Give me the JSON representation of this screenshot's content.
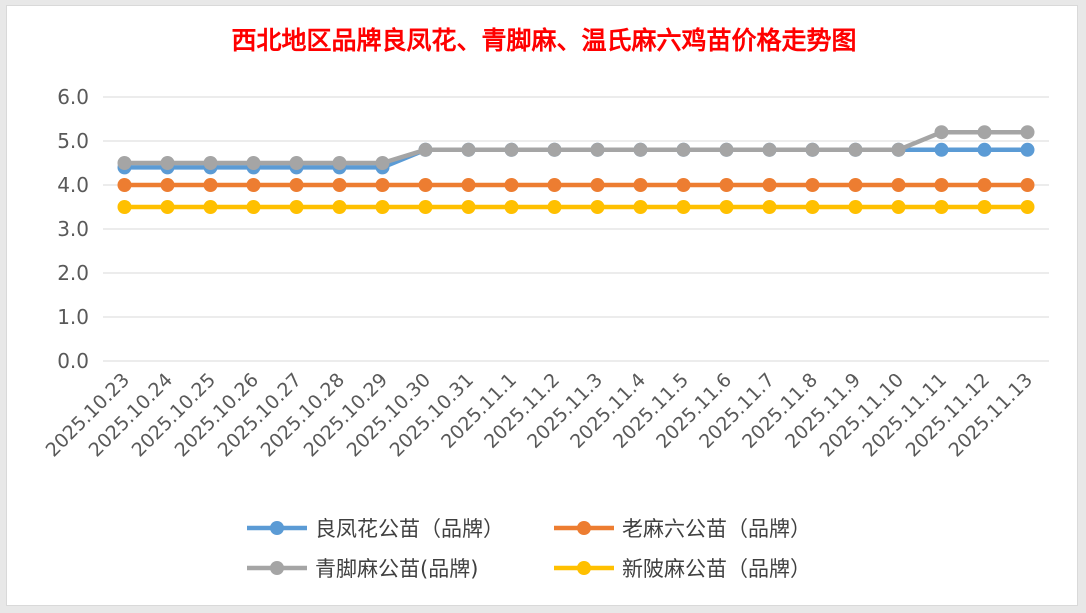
{
  "chart_data": {
    "type": "line",
    "title": "西北地区品牌良凤花、青脚麻、温氏麻六鸡苗价格走势图",
    "title_color": "#ff0000",
    "xlabel": "",
    "ylabel": "",
    "ylim": [
      0,
      6
    ],
    "yticks": [
      "0.0",
      "1.0",
      "2.0",
      "3.0",
      "4.0",
      "5.0",
      "6.0"
    ],
    "grid": true,
    "legend_position": "bottom",
    "categories": [
      "2025.10.23",
      "2025.10.24",
      "2025.10.25",
      "2025.10.26",
      "2025.10.27",
      "2025.10.28",
      "2025.10.29",
      "2025.10.30",
      "2025.10.31",
      "2025.11.1",
      "2025.11.2",
      "2025.11.3",
      "2025.11.4",
      "2025.11.5",
      "2025.11.6",
      "2025.11.7",
      "2025.11.8",
      "2025.11.9",
      "2025.11.10",
      "2025.11.11",
      "2025.11.12",
      "2025.11.13"
    ],
    "series": [
      {
        "name": "良凤花公苗（品牌）",
        "color": "#5b9bd5",
        "values": [
          4.4,
          4.4,
          4.4,
          4.4,
          4.4,
          4.4,
          4.4,
          4.8,
          4.8,
          4.8,
          4.8,
          4.8,
          4.8,
          4.8,
          4.8,
          4.8,
          4.8,
          4.8,
          4.8,
          4.8,
          4.8,
          4.8
        ]
      },
      {
        "name": "老麻六公苗（品牌）",
        "color": "#ed7d31",
        "values": [
          4.0,
          4.0,
          4.0,
          4.0,
          4.0,
          4.0,
          4.0,
          4.0,
          4.0,
          4.0,
          4.0,
          4.0,
          4.0,
          4.0,
          4.0,
          4.0,
          4.0,
          4.0,
          4.0,
          4.0,
          4.0,
          4.0
        ]
      },
      {
        "name": "青脚麻公苗(品牌)",
        "color": "#a5a5a5",
        "values": [
          4.5,
          4.5,
          4.5,
          4.5,
          4.5,
          4.5,
          4.5,
          4.8,
          4.8,
          4.8,
          4.8,
          4.8,
          4.8,
          4.8,
          4.8,
          4.8,
          4.8,
          4.8,
          4.8,
          5.2,
          5.2,
          5.2
        ]
      },
      {
        "name": "新陂麻公苗（品牌）",
        "color": "#ffc000",
        "values": [
          3.5,
          3.5,
          3.5,
          3.5,
          3.5,
          3.5,
          3.5,
          3.5,
          3.5,
          3.5,
          3.5,
          3.5,
          3.5,
          3.5,
          3.5,
          3.5,
          3.5,
          3.5,
          3.5,
          3.5,
          3.5,
          3.5
        ]
      }
    ],
    "legend_order": [
      0,
      1,
      2,
      3
    ]
  }
}
